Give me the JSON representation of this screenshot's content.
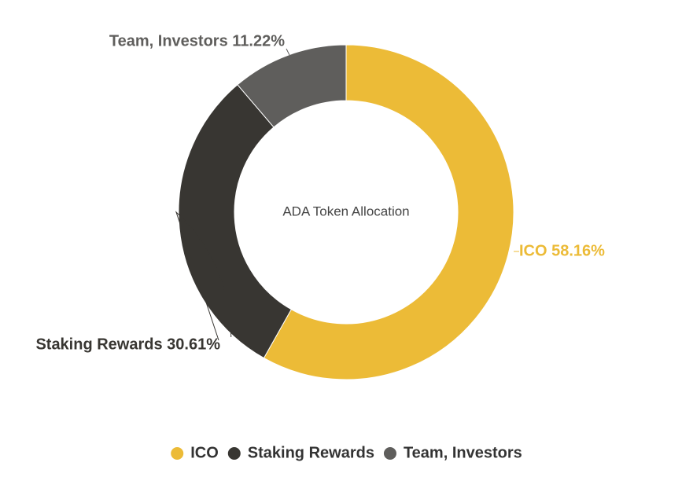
{
  "chart_data": {
    "type": "pie",
    "variant": "donut",
    "title": "ADA Token Allocation",
    "categories": [
      "ICO",
      "Staking Rewards",
      "Team, Investors"
    ],
    "values": [
      58.16,
      30.61,
      11.22
    ],
    "data_labels": [
      "ICO 58.16%",
      "Staking Rewards 30.61%",
      "Team, Investors 11.22%"
    ],
    "colors": [
      "#ecbb37",
      "#383632",
      "#5f5e5c"
    ],
    "label_colors": [
      "#ecbb37",
      "#383632",
      "#5f5e5c"
    ],
    "legend": {
      "position": "bottom",
      "items": [
        "ICO",
        "Staking Rewards",
        "Team, Investors"
      ]
    }
  }
}
